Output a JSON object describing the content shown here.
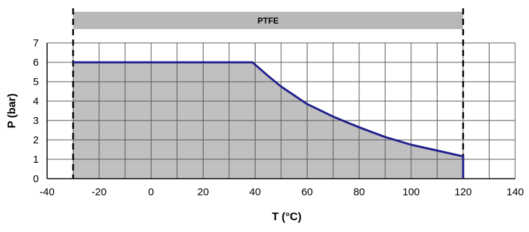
{
  "chart_data": {
    "type": "area",
    "title": "",
    "xlabel": "T (°C)",
    "ylabel": "P (bar)",
    "xlim": [
      -40,
      140
    ],
    "ylim": [
      0,
      7
    ],
    "x_ticks": [
      "-40",
      "-20",
      "0",
      "20",
      "40",
      "60",
      "80",
      "100",
      "120",
      "140"
    ],
    "y_ticks": [
      "0",
      "1",
      "2",
      "3",
      "4",
      "5",
      "6",
      "7"
    ],
    "grid": true,
    "grid_x_step": 10,
    "grid_y_step": 1,
    "band_label": "PTFE",
    "temperature_limits": [
      -30,
      120
    ],
    "series": [
      {
        "x": [
          -30,
          -20,
          -10,
          0,
          10,
          20,
          30,
          39,
          45,
          50,
          60,
          70,
          80,
          90,
          100,
          110,
          120,
          120
        ],
        "y": [
          6,
          6,
          6,
          6,
          6,
          6,
          6,
          6,
          5.3,
          4.75,
          3.85,
          3.2,
          2.65,
          2.15,
          1.75,
          1.45,
          1.15,
          0
        ]
      }
    ],
    "colors": {
      "line": "#1f1f8c",
      "fill": "#c0c0c0",
      "band": "#b8b8b8",
      "grid": "#555555",
      "limit_line": "#000000"
    }
  }
}
